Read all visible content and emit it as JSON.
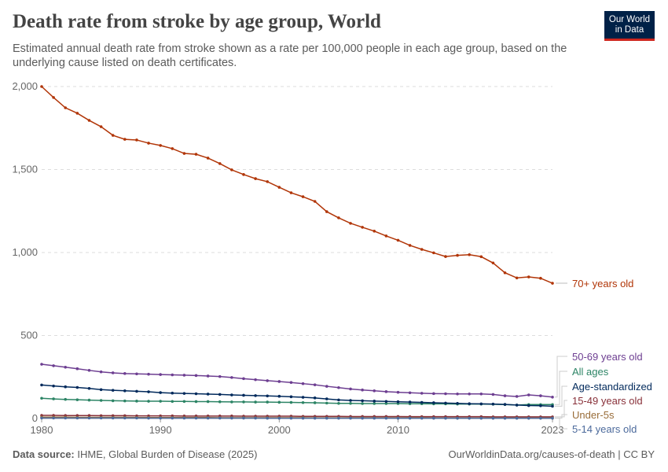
{
  "title": "Death rate from stroke by age group, World",
  "subtitle": "Estimated annual death rate from stroke shown as a rate per 100,000 people in each age group, based on the underlying cause listed on death certificates.",
  "logo": "Our World in Data",
  "footer": {
    "source_label": "Data source:",
    "source": "IHME, Global Burden of Disease (2025)",
    "right": "OurWorldinData.org/causes-of-death | CC BY"
  },
  "chart_data": {
    "type": "line",
    "title": "Death rate from stroke by age group, World",
    "xlim": [
      1980,
      2023
    ],
    "ylim": [
      0,
      2000
    ],
    "x_ticks": [
      "1980",
      "1990",
      "2000",
      "2010",
      "2023"
    ],
    "y_ticks": [
      "0",
      "500",
      "1,000",
      "1,500",
      "2,000"
    ],
    "grid": "horizontal dashed",
    "legend": "right, inline labels",
    "x_start": 1980,
    "series": [
      {
        "name": "70+ years old",
        "color": "#b13507",
        "values": [
          2000,
          1934,
          1872,
          1839,
          1796,
          1758,
          1706,
          1682,
          1678,
          1659,
          1645,
          1626,
          1597,
          1592,
          1569,
          1536,
          1498,
          1470,
          1445,
          1427,
          1393,
          1360,
          1336,
          1308,
          1246,
          1209,
          1176,
          1152,
          1129,
          1100,
          1074,
          1043,
          1019,
          998,
          976,
          983,
          987,
          975,
          937,
          878,
          847,
          853,
          845,
          815
        ]
      },
      {
        "name": "50-69 years old",
        "color": "#6d3e91",
        "values": [
          327,
          318,
          309,
          300,
          290,
          281,
          275,
          271,
          269,
          267,
          265,
          263,
          261,
          259,
          256,
          253,
          247,
          240,
          234,
          228,
          223,
          217,
          210,
          203,
          194,
          186,
          178,
          172,
          167,
          162,
          158,
          155,
          152,
          150,
          149,
          148,
          148,
          148,
          145,
          137,
          133,
          142,
          137,
          129
        ]
      },
      {
        "name": "All ages",
        "color": "#2c8465",
        "values": [
          122,
          118,
          115,
          113,
          111,
          109,
          107,
          106,
          105,
          104,
          104,
          103,
          103,
          102,
          102,
          101,
          100,
          100,
          99,
          99,
          98,
          97,
          96,
          95,
          93,
          91,
          91,
          90,
          90,
          90,
          90,
          89,
          89,
          88,
          88,
          87,
          87,
          87,
          86,
          84,
          81,
          84,
          84,
          84
        ]
      },
      {
        "name": "Age-standardized",
        "color": "#00295b",
        "values": [
          202,
          196,
          191,
          187,
          181,
          174,
          170,
          167,
          164,
          161,
          156,
          153,
          151,
          149,
          147,
          145,
          142,
          140,
          138,
          136,
          134,
          131,
          128,
          124,
          118,
          112,
          109,
          107,
          105,
          103,
          101,
          99,
          97,
          95,
          93,
          91,
          89,
          88,
          87,
          85,
          81,
          78,
          77,
          74
        ]
      },
      {
        "name": "15-49 years old",
        "color": "#883039",
        "values": [
          19,
          19,
          18,
          18,
          18,
          17,
          17,
          17,
          16,
          16,
          16,
          16,
          15,
          15,
          15,
          15,
          15,
          14,
          14,
          14,
          14,
          14,
          13,
          13,
          13,
          13,
          12,
          12,
          12,
          12,
          12,
          11,
          11,
          11,
          11,
          11,
          11,
          11,
          10,
          10,
          10,
          10,
          10,
          10
        ]
      },
      {
        "name": "Under-5s",
        "color": "#996d39",
        "values": [
          8,
          8,
          8,
          7,
          7,
          7,
          7,
          7,
          6,
          6,
          6,
          6,
          6,
          6,
          6,
          5,
          5,
          5,
          5,
          5,
          5,
          5,
          5,
          4,
          4,
          4,
          4,
          4,
          4,
          4,
          4,
          4,
          4,
          3,
          3,
          3,
          3,
          3,
          3,
          3,
          3,
          3,
          3,
          3
        ]
      },
      {
        "name": "5-14 years old",
        "color": "#4c6a9c",
        "values": [
          3,
          3,
          3,
          3,
          3,
          3,
          3,
          3,
          3,
          2.5,
          2.5,
          2.5,
          2.5,
          2.5,
          2.5,
          2.5,
          2.5,
          2.5,
          2.5,
          2,
          2,
          2,
          2,
          2,
          2,
          2,
          2,
          2,
          2,
          2,
          2,
          2,
          2,
          2,
          2,
          1.5,
          1.5,
          1.5,
          1.5,
          1.5,
          1.5,
          1.5,
          1.5,
          1.5
        ]
      }
    ]
  }
}
